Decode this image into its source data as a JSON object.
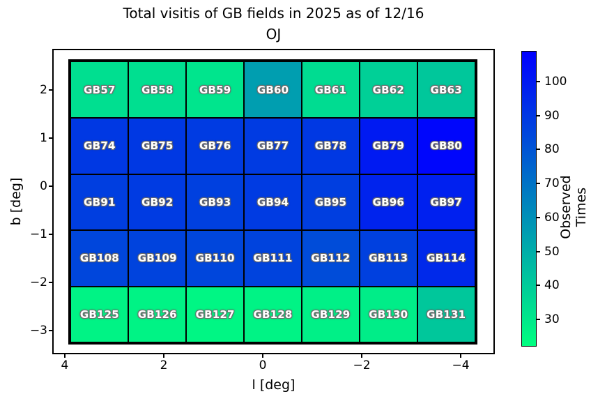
{
  "title": {
    "line1": "Total visitis of GB fields in 2025 as of 12/16",
    "line2": "OJ"
  },
  "axes": {
    "xlabel": "l [deg]",
    "ylabel": "b [deg]",
    "x_ticks": {
      "values": [
        4,
        2,
        0,
        -2,
        -4
      ],
      "labels": [
        "4",
        "2",
        "0",
        "−2",
        "−4"
      ]
    },
    "y_ticks": {
      "values": [
        2,
        1,
        0,
        -1,
        -2,
        -3
      ],
      "labels": [
        "2",
        "1",
        "0",
        "−1",
        "−2",
        "−3"
      ]
    }
  },
  "colorbar": {
    "label": "Observed Times",
    "ticks": {
      "values": [
        100,
        90,
        80,
        70,
        60,
        50,
        40,
        30
      ],
      "labels": [
        "100",
        "90",
        "80",
        "70",
        "60",
        "50",
        "40",
        "30"
      ]
    },
    "vmin": 22,
    "vmax": 109,
    "color_low": "#00ff80",
    "color_high": "#0000ff"
  },
  "chart_data": {
    "type": "heatmap",
    "title": "Total visitis of GB fields in 2025 as of 12/16 OJ",
    "xlabel": "l [deg]",
    "ylabel": "b [deg]",
    "colorbar_label": "Observed Times",
    "colormap": "winter_r (green low to blue high)",
    "color_scale": {
      "vmin": 22,
      "vmax": 109
    },
    "x_axis_inverted": true,
    "grid_shape": {
      "columns": 7,
      "rows": 5
    },
    "values_estimated_from_colors": true,
    "rows": [
      {
        "cells": [
          {
            "label": "GB57",
            "observed_times": 33
          },
          {
            "label": "GB58",
            "observed_times": 33
          },
          {
            "label": "GB59",
            "observed_times": 31
          },
          {
            "label": "GB60",
            "observed_times": 55
          },
          {
            "label": "GB61",
            "observed_times": 34
          },
          {
            "label": "GB62",
            "observed_times": 38
          },
          {
            "label": "GB63",
            "observed_times": 41
          }
        ]
      },
      {
        "cells": [
          {
            "label": "GB74",
            "observed_times": 90
          },
          {
            "label": "GB75",
            "observed_times": 90
          },
          {
            "label": "GB76",
            "observed_times": 89
          },
          {
            "label": "GB77",
            "observed_times": 89
          },
          {
            "label": "GB78",
            "observed_times": 90
          },
          {
            "label": "GB79",
            "observed_times": 100
          },
          {
            "label": "GB80",
            "observed_times": 107
          }
        ]
      },
      {
        "cells": [
          {
            "label": "GB91",
            "observed_times": 88
          },
          {
            "label": "GB92",
            "observed_times": 89
          },
          {
            "label": "GB93",
            "observed_times": 87
          },
          {
            "label": "GB94",
            "observed_times": 89
          },
          {
            "label": "GB95",
            "observed_times": 88
          },
          {
            "label": "GB96",
            "observed_times": 97
          },
          {
            "label": "GB97",
            "observed_times": 98
          }
        ]
      },
      {
        "cells": [
          {
            "label": "GB108",
            "observed_times": 85
          },
          {
            "label": "GB109",
            "observed_times": 86
          },
          {
            "label": "GB110",
            "observed_times": 85
          },
          {
            "label": "GB111",
            "observed_times": 86
          },
          {
            "label": "GB112",
            "observed_times": 83
          },
          {
            "label": "GB113",
            "observed_times": 87
          },
          {
            "label": "GB114",
            "observed_times": 95
          }
        ]
      },
      {
        "cells": [
          {
            "label": "GB125",
            "observed_times": 26
          },
          {
            "label": "GB126",
            "observed_times": 26
          },
          {
            "label": "GB127",
            "observed_times": 25
          },
          {
            "label": "GB128",
            "observed_times": 26
          },
          {
            "label": "GB129",
            "observed_times": 27
          },
          {
            "label": "GB130",
            "observed_times": 28
          },
          {
            "label": "GB131",
            "observed_times": 41
          }
        ]
      }
    ]
  }
}
